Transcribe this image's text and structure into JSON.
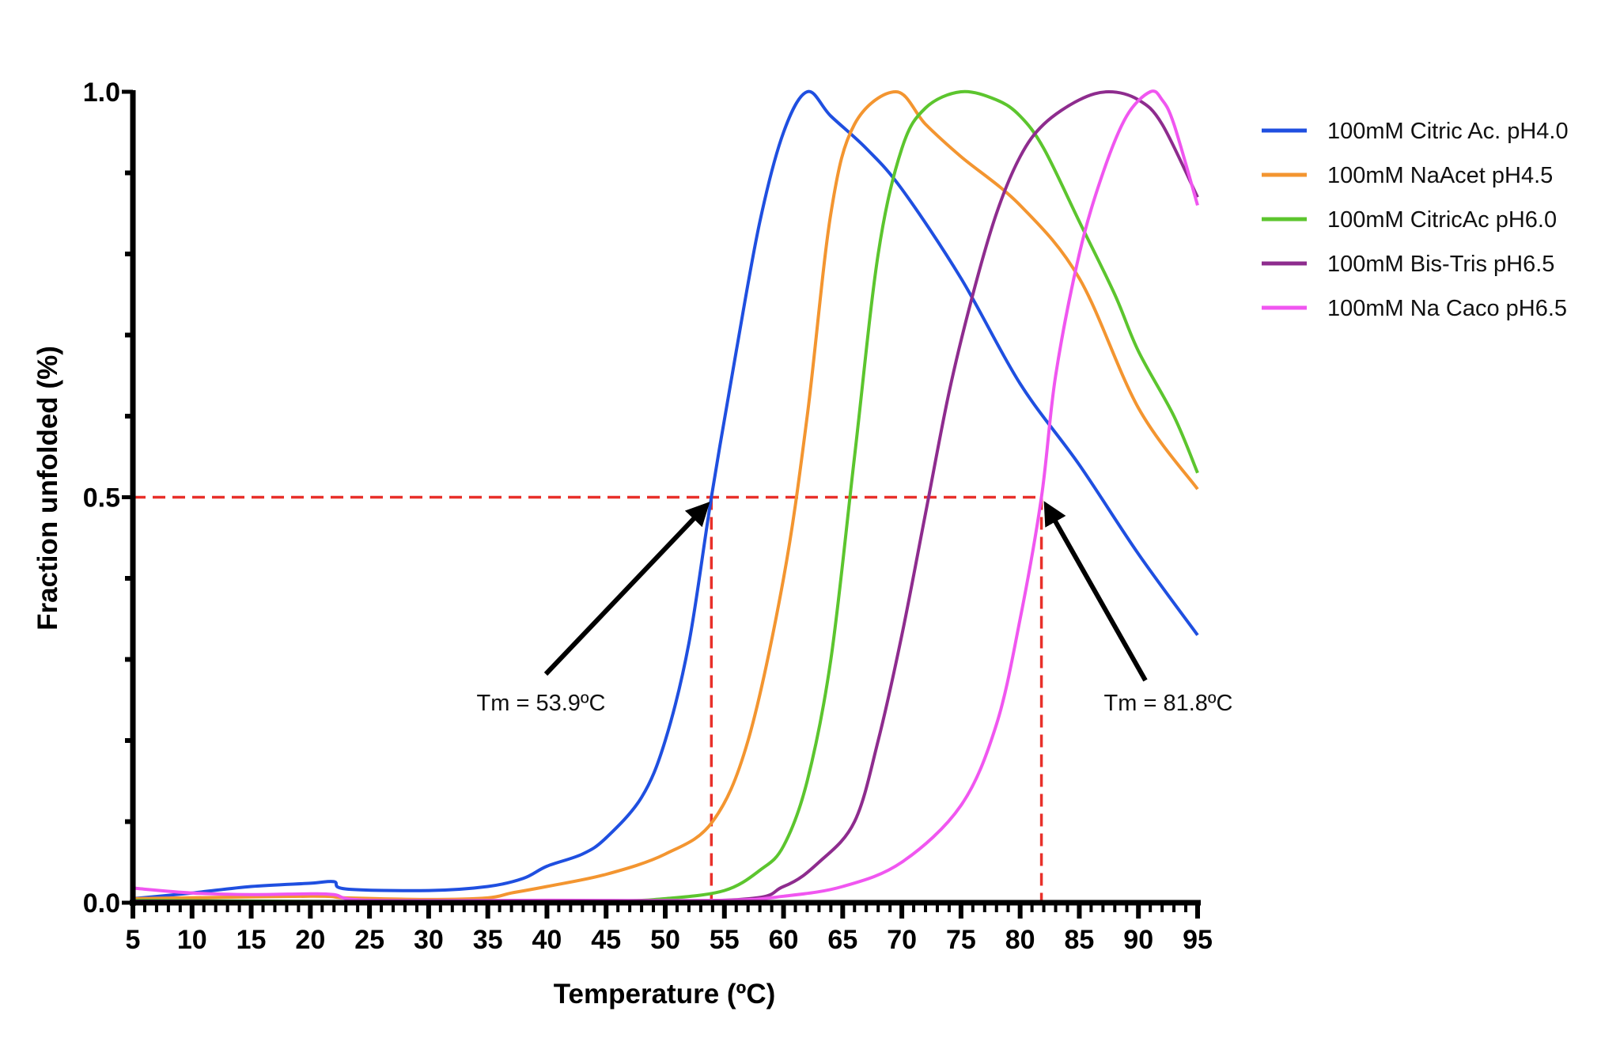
{
  "chart_data": {
    "type": "line",
    "title": "",
    "xlabel": "Temperature  (ºC)",
    "ylabel": "Fraction unfolded  (%)",
    "xlim": [
      5,
      95
    ],
    "ylim": [
      0,
      1
    ],
    "x_ticks": [
      "5",
      "10",
      "15",
      "20",
      "25",
      "30",
      "35",
      "40",
      "45",
      "50",
      "55",
      "60",
      "65",
      "70",
      "75",
      "80",
      "85",
      "90",
      "95"
    ],
    "y_ticks": [
      "0.0",
      "0.5",
      "1.0"
    ],
    "grid": false,
    "legend_position": "top-right",
    "series": [
      {
        "name": "100mM Citric Ac. pH4.0",
        "color": "#1f4fe0",
        "points": [
          [
            5,
            0.005
          ],
          [
            10,
            0.012
          ],
          [
            15,
            0.02
          ],
          [
            20,
            0.024
          ],
          [
            22,
            0.026
          ],
          [
            23,
            0.017
          ],
          [
            30,
            0.015
          ],
          [
            35,
            0.02
          ],
          [
            38,
            0.03
          ],
          [
            40,
            0.045
          ],
          [
            43,
            0.06
          ],
          [
            45,
            0.08
          ],
          [
            48,
            0.13
          ],
          [
            50,
            0.2
          ],
          [
            52,
            0.32
          ],
          [
            53.9,
            0.5
          ],
          [
            56,
            0.68
          ],
          [
            58,
            0.84
          ],
          [
            60,
            0.95
          ],
          [
            62,
            1.0
          ],
          [
            64,
            0.97
          ],
          [
            67,
            0.93
          ],
          [
            70,
            0.88
          ],
          [
            75,
            0.77
          ],
          [
            80,
            0.64
          ],
          [
            85,
            0.54
          ],
          [
            90,
            0.43
          ],
          [
            95,
            0.33
          ]
        ]
      },
      {
        "name": "100mM NaAcet pH4.5",
        "color": "#f39530",
        "points": [
          [
            5,
            0.005
          ],
          [
            20,
            0.008
          ],
          [
            23,
            0.006
          ],
          [
            30,
            0.004
          ],
          [
            35,
            0.006
          ],
          [
            37,
            0.012
          ],
          [
            40,
            0.02
          ],
          [
            45,
            0.035
          ],
          [
            50,
            0.06
          ],
          [
            54,
            0.1
          ],
          [
            57,
            0.2
          ],
          [
            60,
            0.4
          ],
          [
            62,
            0.6
          ],
          [
            64,
            0.85
          ],
          [
            66,
            0.96
          ],
          [
            69.5,
            1.0
          ],
          [
            72,
            0.96
          ],
          [
            75,
            0.92
          ],
          [
            80,
            0.86
          ],
          [
            85,
            0.77
          ],
          [
            90,
            0.61
          ],
          [
            95,
            0.51
          ]
        ]
      },
      {
        "name": "100mM CitricAc pH6.0",
        "color": "#5cc52e",
        "points": [
          [
            5,
            0.003
          ],
          [
            30,
            0.001
          ],
          [
            45,
            0.002
          ],
          [
            50,
            0.005
          ],
          [
            55,
            0.015
          ],
          [
            58,
            0.04
          ],
          [
            60,
            0.07
          ],
          [
            62,
            0.15
          ],
          [
            64,
            0.3
          ],
          [
            66,
            0.55
          ],
          [
            68,
            0.8
          ],
          [
            70,
            0.93
          ],
          [
            72,
            0.98
          ],
          [
            75,
            1.0
          ],
          [
            78,
            0.99
          ],
          [
            80,
            0.97
          ],
          [
            82,
            0.93
          ],
          [
            85,
            0.84
          ],
          [
            88,
            0.75
          ],
          [
            90,
            0.68
          ],
          [
            93,
            0.6
          ],
          [
            95,
            0.53
          ]
        ]
      },
      {
        "name": "100mM Bis-Tris pH6.5",
        "color": "#8e2c8e",
        "points": [
          [
            5,
            0.002
          ],
          [
            30,
            0.001
          ],
          [
            55,
            0.003
          ],
          [
            60,
            0.02
          ],
          [
            63,
            0.05
          ],
          [
            66,
            0.1
          ],
          [
            68,
            0.2
          ],
          [
            70,
            0.33
          ],
          [
            72,
            0.48
          ],
          [
            74,
            0.63
          ],
          [
            76,
            0.75
          ],
          [
            78,
            0.85
          ],
          [
            80,
            0.92
          ],
          [
            82,
            0.96
          ],
          [
            85,
            0.99
          ],
          [
            87.5,
            1.0
          ],
          [
            90,
            0.99
          ],
          [
            92,
            0.96
          ],
          [
            95,
            0.87
          ]
        ]
      },
      {
        "name": "100mM Na Caco pH6.5",
        "color": "#f056f0",
        "points": [
          [
            5,
            0.018
          ],
          [
            10,
            0.012
          ],
          [
            15,
            0.01
          ],
          [
            20,
            0.011
          ],
          [
            22,
            0.01
          ],
          [
            25,
            0.003
          ],
          [
            40,
            0.003
          ],
          [
            55,
            0.003
          ],
          [
            60,
            0.008
          ],
          [
            65,
            0.02
          ],
          [
            70,
            0.05
          ],
          [
            75,
            0.12
          ],
          [
            78,
            0.22
          ],
          [
            80,
            0.35
          ],
          [
            81.8,
            0.5
          ],
          [
            83,
            0.65
          ],
          [
            85,
            0.8
          ],
          [
            87,
            0.9
          ],
          [
            89,
            0.97
          ],
          [
            91,
            1.0
          ],
          [
            92,
            0.99
          ],
          [
            93,
            0.96
          ],
          [
            95,
            0.86
          ]
        ]
      }
    ],
    "reference_lines": {
      "y": 0.5,
      "x": [
        53.9,
        81.8
      ],
      "color": "#e8302a",
      "style": "dashed"
    },
    "annotations": [
      {
        "text": "Tm = 53.9ºC",
        "x": 53.9,
        "y": 0.5
      },
      {
        "text": "Tm = 81.8ºC",
        "x": 81.8,
        "y": 0.5
      }
    ]
  }
}
